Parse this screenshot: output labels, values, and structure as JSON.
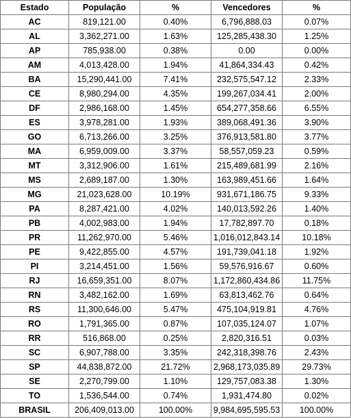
{
  "headers": [
    "Estado",
    "População",
    "%",
    "Vencedores",
    "%"
  ],
  "rows": [
    [
      "AC",
      "819,121.00",
      "0.40%",
      "6,796,888.03",
      "0.07%"
    ],
    [
      "AL",
      "3,362,271.00",
      "1.63%",
      "125,285,438.30",
      "1.25%"
    ],
    [
      "AP",
      "785,938.00",
      "0.38%",
      "0.00",
      "0.00%"
    ],
    [
      "AM",
      "4,013,428.00",
      "1.94%",
      "41,864,334.43",
      "0.42%"
    ],
    [
      "BA",
      "15,290,441.00",
      "7.41%",
      "232,575,547.12",
      "2.33%"
    ],
    [
      "CE",
      "8,980,294.00",
      "4.35%",
      "199,267,034.41",
      "2.00%"
    ],
    [
      "DF",
      "2,986,168.00",
      "1.45%",
      "654,277,358.66",
      "6.55%"
    ],
    [
      "ES",
      "3,978,281.00",
      "1.93%",
      "389,068,491.36",
      "3.90%"
    ],
    [
      "GO",
      "6,713,266.00",
      "3.25%",
      "376,913,581.80",
      "3.77%"
    ],
    [
      "MA",
      "6,959,009.00",
      "3.37%",
      "58,557,059.23",
      "0.59%"
    ],
    [
      "MT",
      "3,312,906.00",
      "1.61%",
      "215,489,681.99",
      "2.16%"
    ],
    [
      "MS",
      "2,689,187.00",
      "1.30%",
      "163,989,451.66",
      "1.64%"
    ],
    [
      "MG",
      "21,023,628.00",
      "10.19%",
      "931,671,186.75",
      "9.33%"
    ],
    [
      "PA",
      "8,287,421.00",
      "4.02%",
      "140,013,592.26",
      "1.40%"
    ],
    [
      "PB",
      "4,002,983.00",
      "1.94%",
      "17,782,897.70",
      "0.18%"
    ],
    [
      "PR",
      "11,262,970.00",
      "5.46%",
      "1,016,012,843.14",
      "10.18%"
    ],
    [
      "PE",
      "9,422,855.00",
      "4.57%",
      "191,739,041.18",
      "1.92%"
    ],
    [
      "PI",
      "3,214,451.00",
      "1.56%",
      "59,576,916.67",
      "0.60%"
    ],
    [
      "RJ",
      "16,659,351.00",
      "8.07%",
      "1,172,860,434.86",
      "11.75%"
    ],
    [
      "RN",
      "3,482,162.00",
      "1.69%",
      "63,813,462.76",
      "0.64%"
    ],
    [
      "RS",
      "11,300,646.00",
      "5.47%",
      "475,104,919.81",
      "4.76%"
    ],
    [
      "RO",
      "1,791,365.00",
      "0.87%",
      "107,035,124.07",
      "1.07%"
    ],
    [
      "RR",
      "516,868.00",
      "0.25%",
      "2,820,316.51",
      "0.03%"
    ],
    [
      "SC",
      "6,907,788.00",
      "3.35%",
      "242,318,398.76",
      "2.43%"
    ],
    [
      "SP",
      "44,838,872.00",
      "21.72%",
      "2,968,173,035.89",
      "29.73%"
    ],
    [
      "SE",
      "2,270,799.00",
      "1.10%",
      "129,757,083.38",
      "1.30%"
    ],
    [
      "TO",
      "1,536,544.00",
      "0.74%",
      "1,931,474.80",
      "0.02%"
    ]
  ],
  "total": [
    "BRASIL",
    "206,409,013.00",
    "100.00%",
    "9,984,695,595.53",
    "100.00%"
  ]
}
